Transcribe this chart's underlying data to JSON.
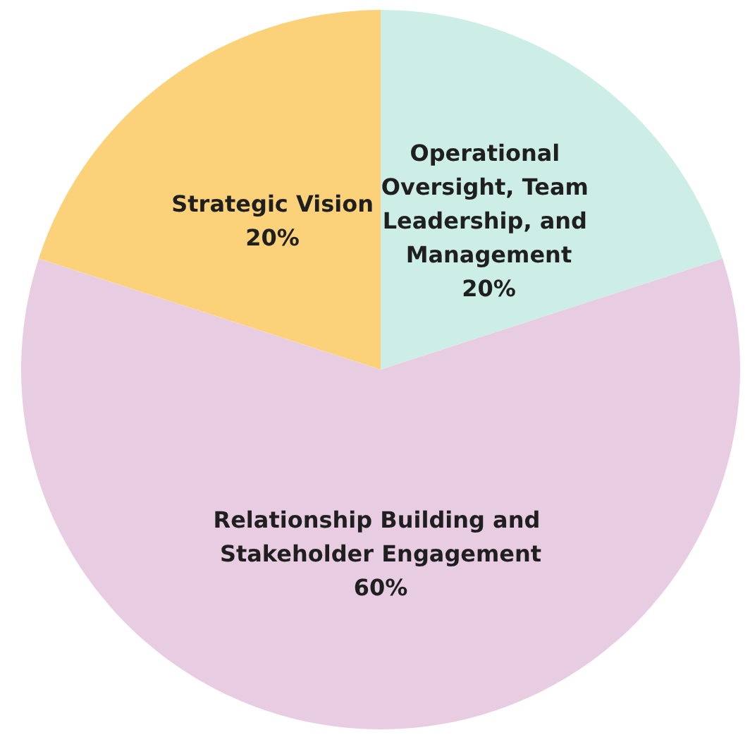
{
  "chart_data": {
    "type": "pie",
    "categories": [
      "Operational Oversight, Team Leadership, and Management",
      "Relationship Building and Stakeholder Engagement",
      "Strategic Vision"
    ],
    "values": [
      20,
      60,
      20
    ],
    "colors": [
      "#cdeee6",
      "#e8cde2",
      "#fbd27a"
    ],
    "value_labels": [
      "20%",
      "60%",
      "20%"
    ],
    "legend": false
  }
}
